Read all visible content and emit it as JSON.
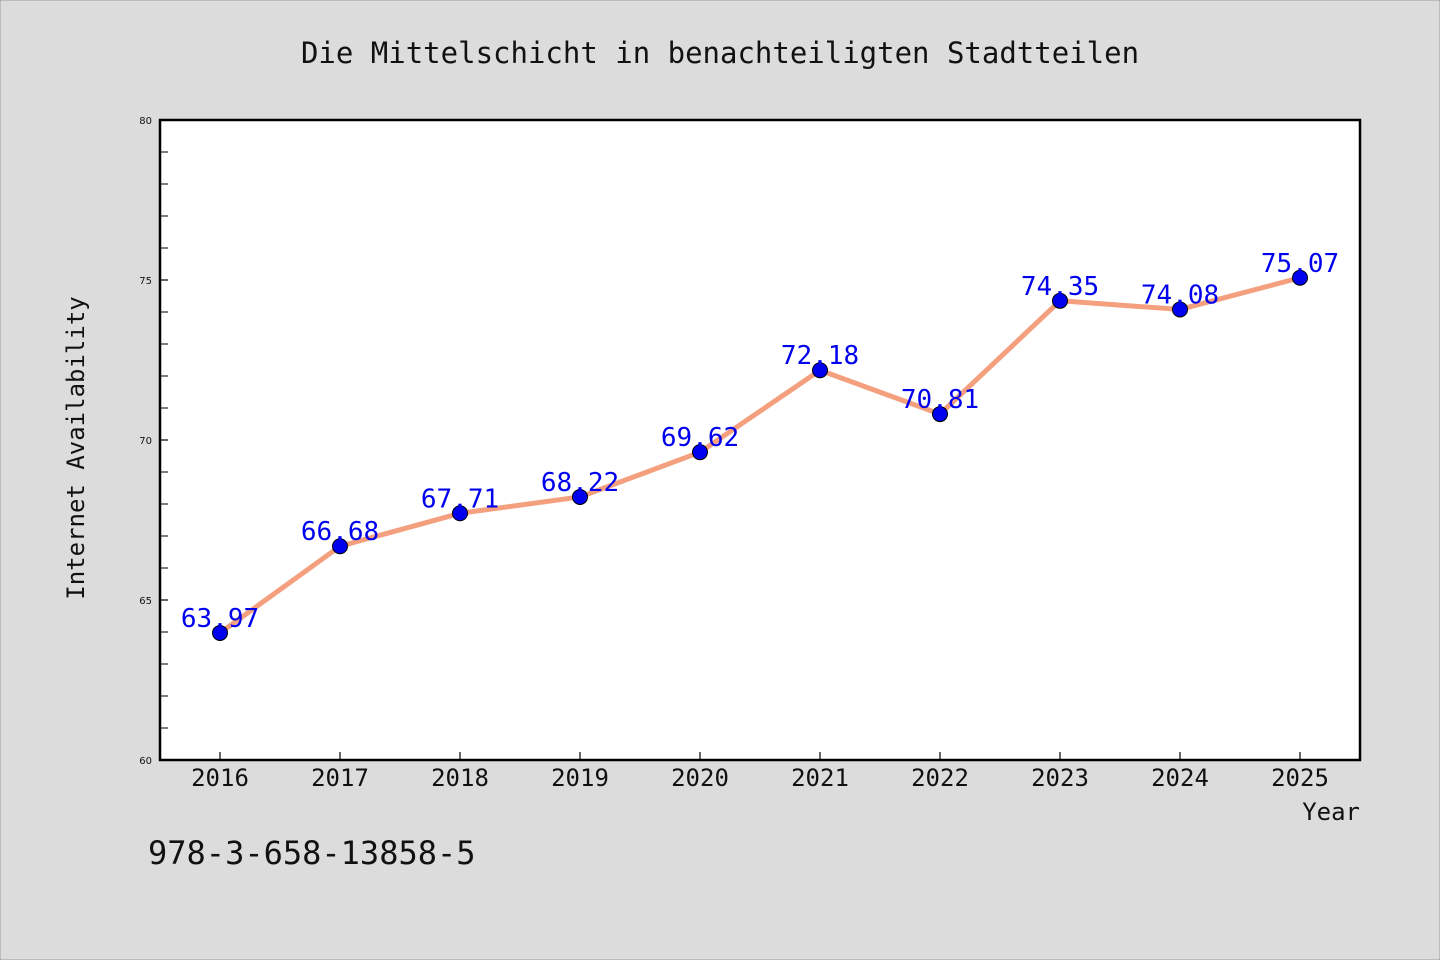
{
  "chart_data": {
    "type": "line",
    "title": "Die Mittelschicht in benachteiligten Stadtteilen",
    "xlabel": "Year",
    "ylabel": "Internet Availability",
    "categories": [
      "2016",
      "2017",
      "2018",
      "2019",
      "2020",
      "2021",
      "2022",
      "2023",
      "2024",
      "2025"
    ],
    "series": [
      {
        "values": [
          63.97,
          66.68,
          67.71,
          68.22,
          69.62,
          72.18,
          70.81,
          74.35,
          74.08,
          75.07
        ],
        "value_labels": [
          "63.97",
          "66.68",
          "67.71",
          "68.22",
          "69.62",
          "72.18",
          "70.81",
          "74.35",
          "74.08",
          "75.07"
        ],
        "line_color": "#f4a07f",
        "marker_color": "#0000ee",
        "label_color": "#0000ee"
      }
    ],
    "ylim": [
      60,
      80
    ],
    "yticks": [
      60,
      65,
      70,
      75,
      80
    ],
    "ytick_labels": [
      "60",
      "65",
      "70",
      "75",
      "80"
    ],
    "y_minor_step": 1,
    "grid": false,
    "legend": "none"
  },
  "footer_text": "978-3-658-13858-5",
  "colors": {
    "figure_background": "#dcdcdc",
    "plot_background": "#ffffff",
    "axis": "#000000"
  }
}
